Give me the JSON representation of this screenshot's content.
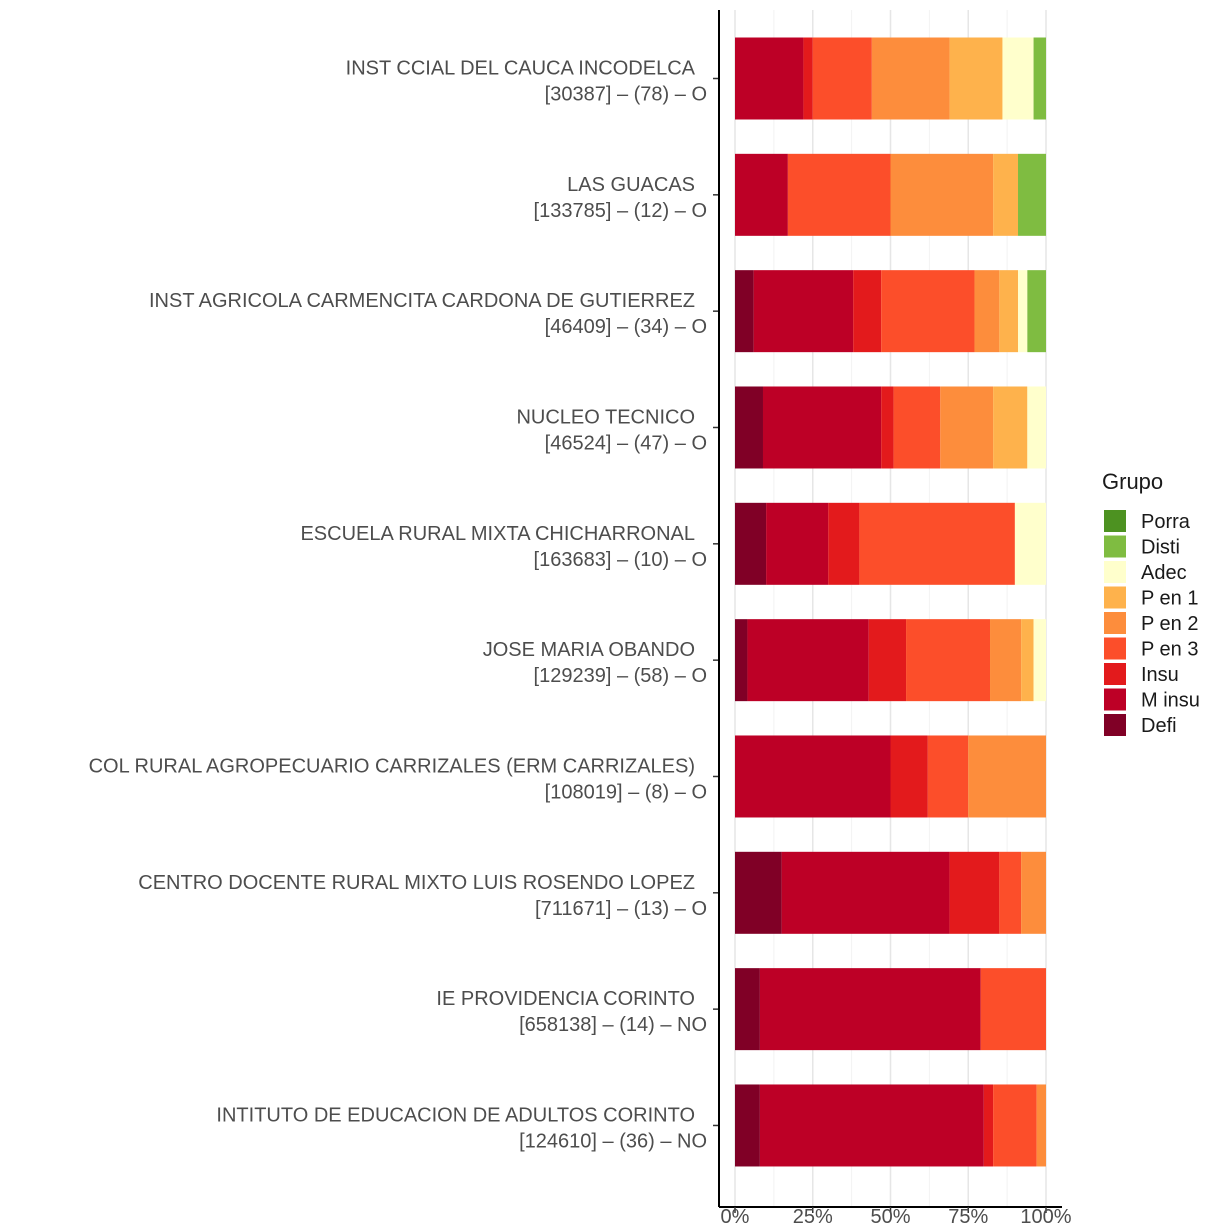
{
  "chart_data": {
    "type": "bar",
    "orientation": "horizontal",
    "stacked": true,
    "normalized": true,
    "xlabel": "",
    "ylabel": "",
    "xlim": [
      0,
      100
    ],
    "x_ticks": [
      "0%",
      "25%",
      "50%",
      "75%",
      "100%"
    ],
    "grid": true,
    "legend": {
      "title": "Grupo",
      "position": "right"
    },
    "categories": [
      [
        "INST CCIAL DEL CAUCA INCODELCA",
        "[30387] – (78) – O"
      ],
      [
        "LAS GUACAS",
        "[133785] – (12) – O"
      ],
      [
        "INST AGRICOLA CARMENCITA CARDONA DE GUTIERREZ",
        "[46409] – (34) – O"
      ],
      [
        "NUCLEO TECNICO",
        "[46524] – (47) – O"
      ],
      [
        "ESCUELA RURAL MIXTA CHICHARRONAL",
        "[163683] – (10) – O"
      ],
      [
        "JOSE MARIA OBANDO",
        "[129239] – (58) – O"
      ],
      [
        "COL RURAL AGROPECUARIO CARRIZALES (ERM CARRIZALES)",
        "[108019] – (8) – O"
      ],
      [
        "CENTRO DOCENTE RURAL MIXTO LUIS ROSENDO LOPEZ",
        "[711671] – (13) – O"
      ],
      [
        "IE PROVIDENCIA CORINTO",
        "[658138] – (14) – NO"
      ],
      [
        "INTITUTO DE EDUCACION DE ADULTOS CORINTO",
        "[124610] – (36) – NO"
      ]
    ],
    "series": [
      {
        "name": "Defi",
        "color": "#800026",
        "values": [
          0,
          0,
          6,
          9,
          10,
          4,
          0,
          15,
          8,
          8
        ]
      },
      {
        "name": "M insu",
        "color": "#BD0026",
        "values": [
          22,
          17,
          32,
          38,
          20,
          39,
          50,
          54,
          71,
          72
        ]
      },
      {
        "name": "Insu",
        "color": "#E31A1C",
        "values": [
          3,
          0,
          9,
          4,
          10,
          12,
          12,
          16,
          0,
          3
        ]
      },
      {
        "name": "P en 3",
        "color": "#FC4E2A",
        "values": [
          19,
          33,
          30,
          15,
          50,
          27,
          13,
          7,
          21,
          14
        ]
      },
      {
        "name": "P en 2",
        "color": "#FD8D3C",
        "values": [
          25,
          33,
          8,
          17,
          0,
          10,
          25,
          8,
          0,
          3
        ]
      },
      {
        "name": "P en 1",
        "color": "#FEB24C",
        "values": [
          17,
          8,
          6,
          11,
          0,
          4,
          0,
          0,
          0,
          0
        ]
      },
      {
        "name": "Adec",
        "color": "#FFFFCC",
        "values": [
          10,
          0,
          3,
          6,
          10,
          4,
          0,
          0,
          0,
          0
        ]
      },
      {
        "name": "Disti",
        "color": "#7FBC41",
        "values": [
          4,
          9,
          6,
          0,
          0,
          0,
          0,
          0,
          0,
          0
        ]
      },
      {
        "name": "Porra",
        "color": "#4D9221",
        "values": [
          0,
          0,
          0,
          0,
          0,
          0,
          0,
          0,
          0,
          0
        ]
      }
    ]
  }
}
